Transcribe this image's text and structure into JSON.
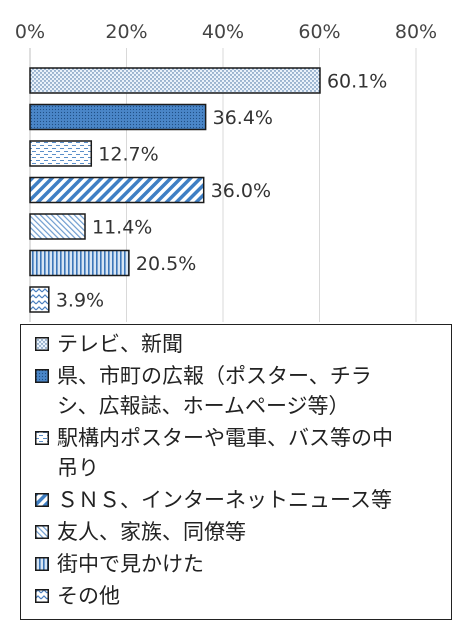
{
  "chart_data": {
    "type": "bar",
    "orientation": "horizontal",
    "title": "",
    "xlabel": "",
    "ylabel": "",
    "xlim": [
      0,
      80
    ],
    "x_ticks": [
      "0%",
      "20%",
      "40%",
      "60%",
      "80%"
    ],
    "categories": [
      "テレビ、新聞",
      "県、市町の広報（ポスター、チラシ、広報誌、ホームページ等）",
      "駅構内ポスターや電車、バス等の中吊り",
      "ＳＮＳ、インターネットニュース等",
      "友人、家族、同僚等",
      "街中で見かけた",
      "その他"
    ],
    "values": [
      60.1,
      36.4,
      12.7,
      36.0,
      11.4,
      20.5,
      3.9
    ],
    "data_labels": [
      "60.1%",
      "36.4%",
      "12.7%",
      "36.0%",
      "11.4%",
      "20.5%",
      "3.9%"
    ],
    "grid": true,
    "legend_position": "bottom",
    "colors": {
      "fill_blue": "#4a86c8",
      "fill_light": "#c8daee",
      "outline": "#1a1a1a",
      "grid": "#d9d9d9"
    },
    "patterns": [
      "fine-dots",
      "dense-dots",
      "dashes",
      "diagonal-stripes",
      "fine-diagonal",
      "vertical-stripes",
      "zigzag"
    ]
  },
  "legend": {
    "items": [
      {
        "label_lines": [
          "テレビ、新聞"
        ]
      },
      {
        "label_lines": [
          "県、市町の広報（ポスター、チラ",
          "シ、広報誌、ホームページ等）"
        ]
      },
      {
        "label_lines": [
          "駅構内ポスターや電車、バス等の中",
          "吊り"
        ]
      },
      {
        "label_lines": [
          "ＳＮＳ、インターネットニュース等"
        ]
      },
      {
        "label_lines": [
          "友人、家族、同僚等"
        ]
      },
      {
        "label_lines": [
          "街中で見かけた"
        ]
      },
      {
        "label_lines": [
          "その他"
        ]
      }
    ]
  }
}
